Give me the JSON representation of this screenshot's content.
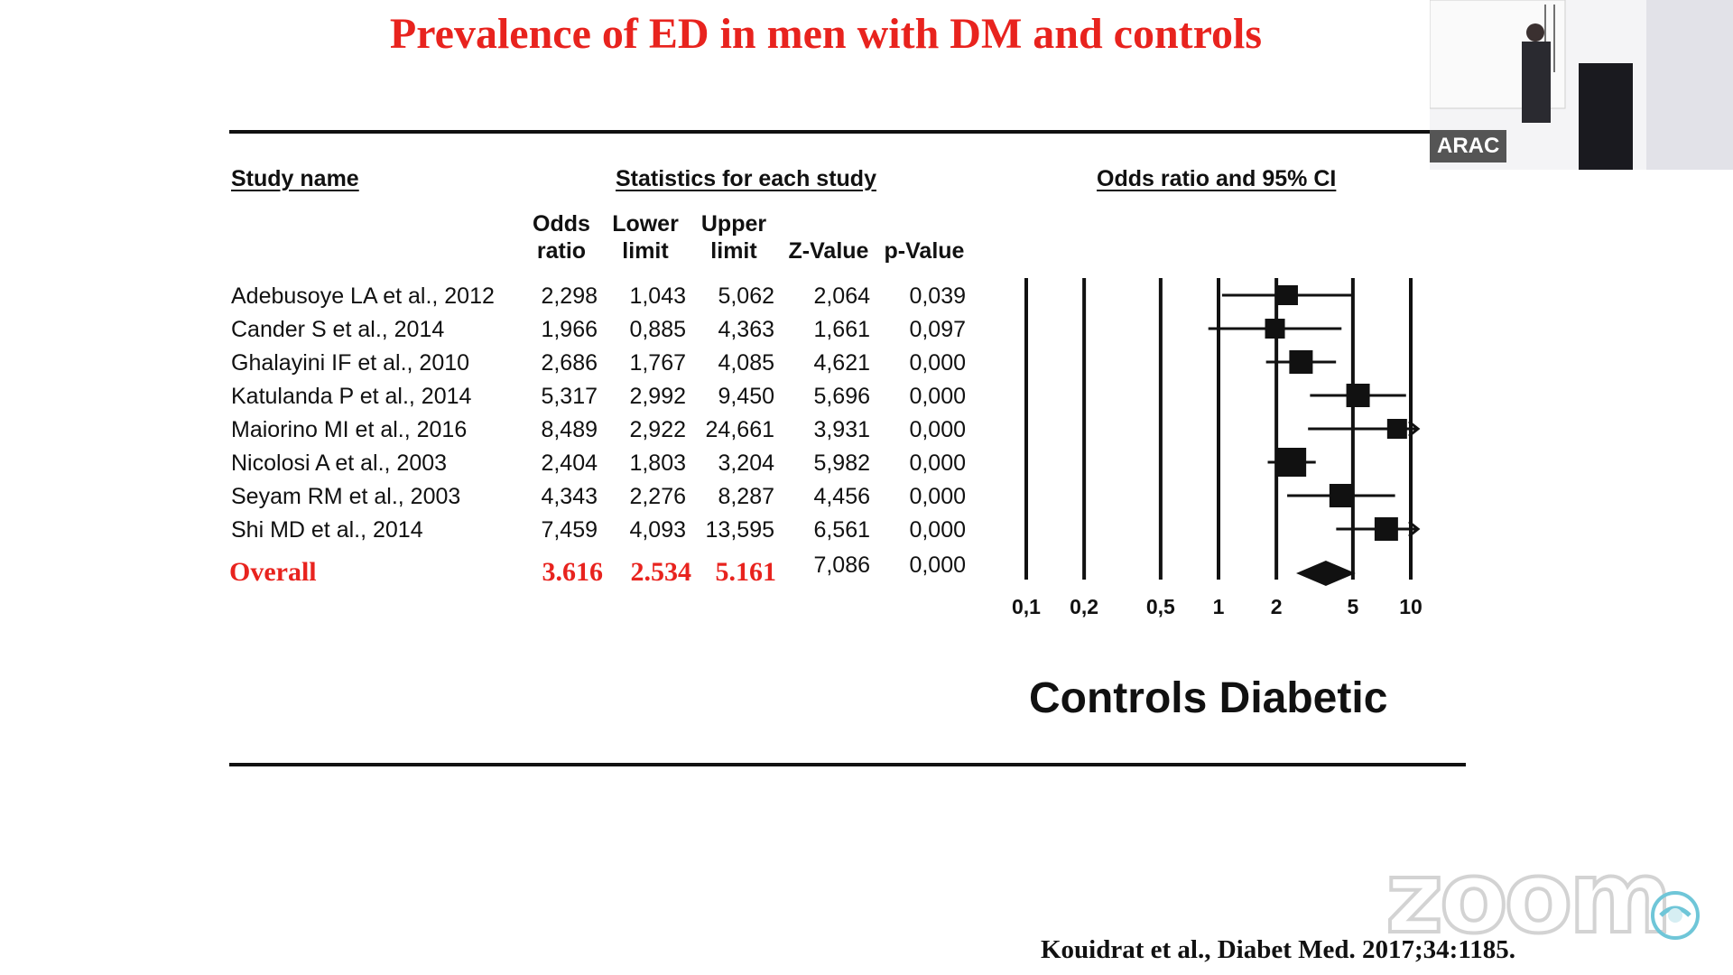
{
  "title": "Prevalence of ED in men with DM and controls",
  "headers": {
    "study_name": "Study name",
    "statistics": "Statistics for each study",
    "odds_ci": "Odds ratio and 95% CI"
  },
  "columns": [
    {
      "line1": "Odds",
      "line2": "ratio"
    },
    {
      "line1": "Lower",
      "line2": "limit"
    },
    {
      "line1": "Upper",
      "line2": "limit"
    },
    {
      "line1": "",
      "line2": "Z-Value"
    },
    {
      "line1": "",
      "line2": "p-Value"
    }
  ],
  "studies": [
    {
      "name": "Adebusoye LA et al., 2012",
      "or": "2,298",
      "lower": "1,043",
      "upper": "5,062",
      "z": "2,064",
      "p": "0,039"
    },
    {
      "name": "Cander S et al., 2014",
      "or": "1,966",
      "lower": "0,885",
      "upper": "4,363",
      "z": "1,661",
      "p": "0,097"
    },
    {
      "name": "Ghalayini IF et al., 2010",
      "or": "2,686",
      "lower": "1,767",
      "upper": "4,085",
      "z": "4,621",
      "p": "0,000"
    },
    {
      "name": "Katulanda P et al., 2014",
      "or": "5,317",
      "lower": "2,992",
      "upper": "9,450",
      "z": "5,696",
      "p": "0,000"
    },
    {
      "name": "Maiorino MI et al., 2016",
      "or": "8,489",
      "lower": "2,922",
      "upper": "24,661",
      "z": "3,931",
      "p": "0,000"
    },
    {
      "name": "Nicolosi A et al., 2003",
      "or": "2,404",
      "lower": "1,803",
      "upper": "3,204",
      "z": "5,982",
      "p": "0,000"
    },
    {
      "name": "Seyam RM et al., 2003",
      "or": "4,343",
      "lower": "2,276",
      "upper": "8,287",
      "z": "4,456",
      "p": "0,000"
    },
    {
      "name": "Shi MD et al., 2014",
      "or": "7,459",
      "lower": "4,093",
      "upper": "13,595",
      "z": "6,561",
      "p": "0,000"
    }
  ],
  "overall": {
    "name": "Overall",
    "or": "3.616",
    "lower": "2.534",
    "upper": "5.161",
    "z": "7,086",
    "p": "0,000"
  },
  "chart_data": {
    "type": "forest",
    "scale": "log",
    "xlim": [
      0.1,
      10
    ],
    "ticks": [
      {
        "value": 0.1,
        "label": "0,1"
      },
      {
        "value": 0.2,
        "label": "0,2"
      },
      {
        "value": 0.5,
        "label": "0,5"
      },
      {
        "value": 1,
        "label": "1"
      },
      {
        "value": 2,
        "label": "2"
      },
      {
        "value": 5,
        "label": "5"
      },
      {
        "value": 10,
        "label": "10"
      }
    ],
    "points": [
      {
        "label": "Adebusoye LA et al., 2012",
        "or": 2.298,
        "lower": 1.043,
        "upper": 5.062
      },
      {
        "label": "Cander S et al., 2014",
        "or": 1.966,
        "lower": 0.885,
        "upper": 4.363
      },
      {
        "label": "Ghalayini IF et al., 2010",
        "or": 2.686,
        "lower": 1.767,
        "upper": 4.085
      },
      {
        "label": "Katulanda P et al., 2014",
        "or": 5.317,
        "lower": 2.992,
        "upper": 9.45
      },
      {
        "label": "Maiorino MI et al., 2016",
        "or": 8.489,
        "lower": 2.922,
        "upper": 24.661
      },
      {
        "label": "Nicolosi A et al., 2003",
        "or": 2.404,
        "lower": 1.803,
        "upper": 3.204
      },
      {
        "label": "Seyam RM et al., 2003",
        "or": 4.343,
        "lower": 2.276,
        "upper": 8.287
      },
      {
        "label": "Shi MD et al., 2014",
        "or": 7.459,
        "lower": 4.093,
        "upper": 13.595
      }
    ],
    "overall": {
      "label": "Overall",
      "or": 3.616,
      "lower": 2.534,
      "upper": 5.161
    },
    "footer": "Controls Diabetic"
  },
  "citation": "Kouidrat et al.,  Diabet Med. 2017;34:1185.",
  "video_thumbnail": {
    "label": "ARAC"
  },
  "zoom_watermark": "zoom",
  "colors": {
    "title": "#e8231e",
    "overall": "#e8231e",
    "text": "#111111"
  }
}
